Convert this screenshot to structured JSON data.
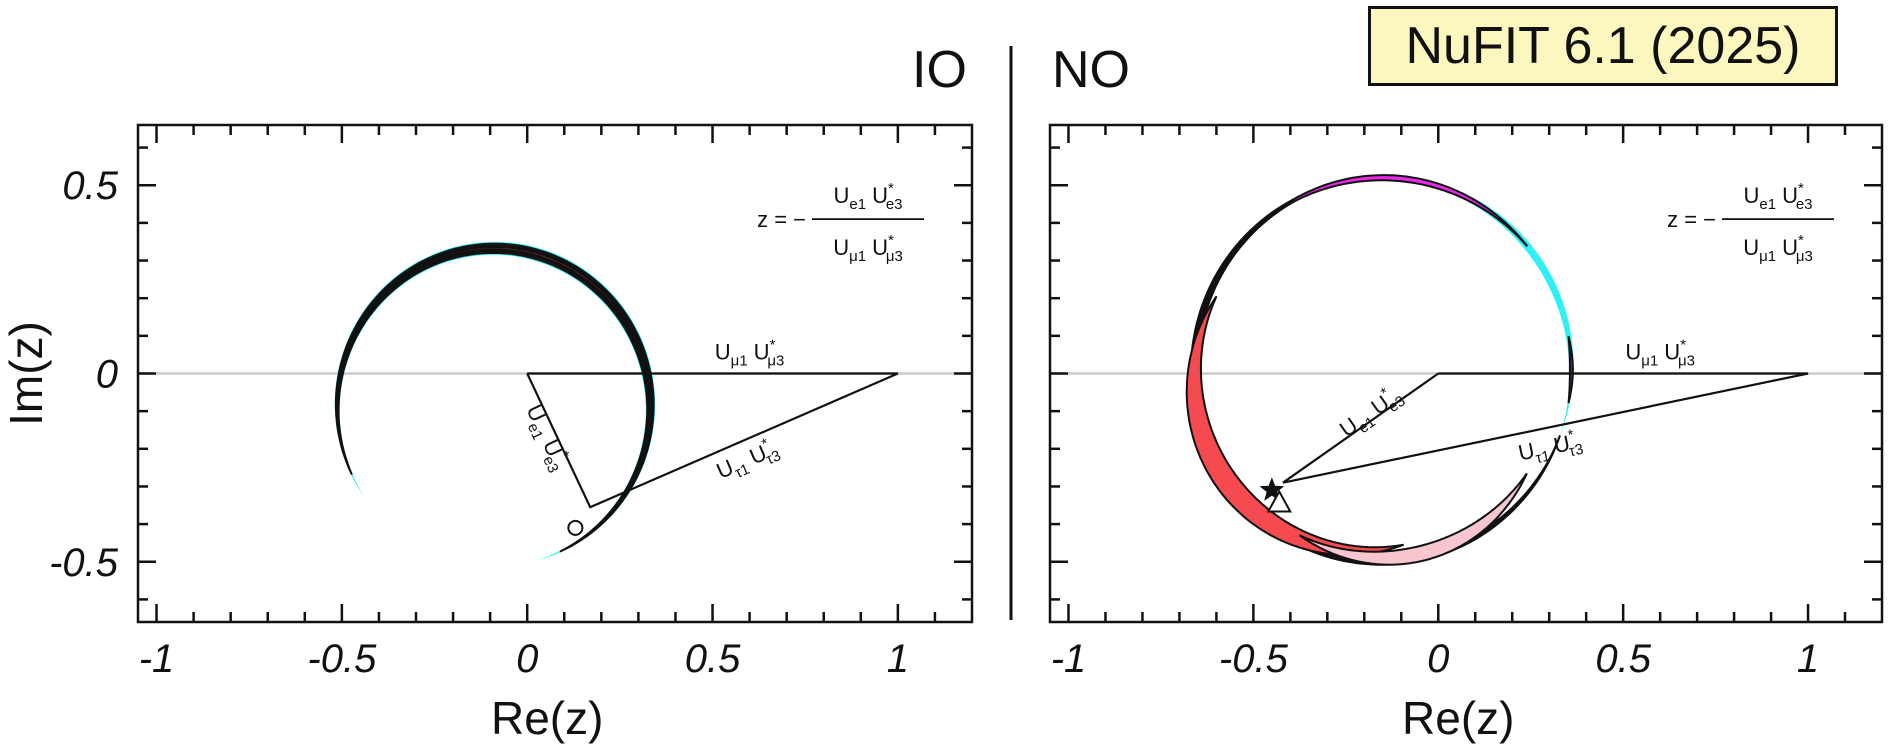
{
  "badge": {
    "text": "NuFIT 6.1 (2025)"
  },
  "colors": {
    "cyan": "#2ff0f7",
    "magenta": "#ec26e8",
    "blue": "#3332e6",
    "pink": "#f7c6cf",
    "red": "#f44a50",
    "black": "#111111",
    "zero_line": "#cccccc",
    "badge_bg": "#fbf7bf"
  },
  "xaxis_label": "Re(z)",
  "yaxis_label": "Im(z)",
  "chart_data": [
    {
      "type": "scatter",
      "panel": "IO",
      "title": "IO",
      "xlabel": "Re(z)",
      "ylabel": "Im(z)",
      "xlim": [
        -1.05,
        1.2
      ],
      "ylim": [
        -0.66,
        0.66
      ],
      "xticks": [
        -1,
        -0.5,
        0,
        0.5,
        1
      ],
      "xticklabels": [
        "-1",
        "-0.5",
        "0",
        "0.5",
        "1"
      ],
      "yticks": [
        -0.5,
        0,
        0.5
      ],
      "yticklabels": [
        "-0.5",
        "0",
        "0.5"
      ],
      "grid": false,
      "formula": {
        "lhs": "z = −",
        "numerator": [
          "U",
          "e1",
          "U",
          "e3"
        ],
        "denominator": [
          "U",
          "μ1",
          "U",
          "μ3"
        ]
      },
      "triangle_vertex": [
        0.17,
        -0.355
      ],
      "triangle_labels": {
        "mu": {
          "base": "U",
          "sub1": "μ1",
          "base2": "U",
          "sub2": "μ3"
        },
        "e": {
          "base": "U",
          "sub1": "e1",
          "base2": "U",
          "sub2": "e3"
        },
        "tau": {
          "base": "U",
          "sub1": "τ1",
          "base2": "U",
          "sub2": "τ3"
        }
      },
      "best_fit": {
        "marker": "circle",
        "x": 0.13,
        "y": -0.41
      },
      "regions": [
        {
          "level": "cyan",
          "center": [
            -0.09,
            -0.09
          ],
          "r_in": 0.405,
          "r_out": 0.44,
          "theta": [
            -75,
            215
          ],
          "clip_y": -0.05
        },
        {
          "level": "magenta",
          "center": [
            -0.09,
            -0.09
          ],
          "r_in": 0.41,
          "r_out": 0.435,
          "theta": [
            -65,
            205
          ],
          "clip_y": -0.12
        },
        {
          "level": "blue",
          "center": [
            -0.09,
            -0.09
          ],
          "r_in": 0.415,
          "r_out": 0.43,
          "theta": [
            -58,
            195
          ]
        },
        {
          "level": "pink",
          "center": [
            -0.09,
            -0.09
          ],
          "r_in": 0.418,
          "r_out": 0.428,
          "theta": [
            -50,
            192
          ]
        },
        {
          "level": "red",
          "center": [
            -0.09,
            -0.09
          ],
          "r_in": 0.42,
          "r_out": 0.426,
          "theta": [
            -43,
            185
          ]
        }
      ]
    },
    {
      "type": "scatter",
      "panel": "NO",
      "title": "NO",
      "xlabel": "Re(z)",
      "ylabel": "Im(z)",
      "xlim": [
        -1.05,
        1.2
      ],
      "ylim": [
        -0.66,
        0.66
      ],
      "xticks": [
        -1,
        -0.5,
        0,
        0.5,
        1
      ],
      "xticklabels": [
        "-1",
        "-0.5",
        "0",
        "0.5",
        "1"
      ],
      "yticks": [
        -0.5,
        0,
        0.5
      ],
      "yticklabels": [
        "-0.5",
        "0",
        "0.5"
      ],
      "grid": false,
      "formula": {
        "lhs": "z = −",
        "numerator": [
          "U",
          "e1",
          "U",
          "e3"
        ],
        "denominator": [
          "U",
          "μ1",
          "U",
          "μ3"
        ]
      },
      "triangle_vertex": [
        -0.42,
        -0.29
      ],
      "triangle_labels": {
        "mu": {
          "base": "U",
          "sub1": "μ1",
          "base2": "U",
          "sub2": "μ3"
        },
        "e": {
          "base": "U",
          "sub1": "e1",
          "base2": "U",
          "sub2": "e3"
        },
        "tau": {
          "base": "U",
          "sub1": "τ1",
          "base2": "U",
          "sub2": "τ3"
        }
      },
      "best_fit": {
        "marker": "star",
        "x": -0.45,
        "y": -0.31
      },
      "second_marker": {
        "marker": "triangle",
        "x": -0.43,
        "y": -0.34
      },
      "regions": [
        {
          "level": "cyan",
          "center": [
            -0.15,
            0.01
          ],
          "r_in": 0.5,
          "r_out": 0.52,
          "theta": [
            -20,
            95
          ]
        },
        {
          "level": "black",
          "center": [
            -0.15,
            0.01
          ],
          "r_in": 0.5,
          "r_out": 0.52,
          "theta": [
            95,
            340
          ]
        },
        {
          "level": "magenta",
          "center": [
            -0.15,
            0.01
          ],
          "r_in": 0.503,
          "r_out": 0.517,
          "theta": [
            40,
            130
          ]
        },
        {
          "level": "blue",
          "center": [
            -0.15,
            0.01
          ],
          "r_in": 0.506,
          "r_out": 0.514,
          "theta": [
            -10,
            10
          ]
        },
        {
          "level": "red",
          "center": [
            -0.21,
            -0.02
          ],
          "r_in": 0.42,
          "r_out": 0.48,
          "theta": [
            150,
            285
          ]
        },
        {
          "level": "pink",
          "center": [
            -0.15,
            -0.04
          ],
          "r_in": 0.43,
          "r_out": 0.47,
          "theta": [
            240,
            330
          ]
        }
      ]
    }
  ]
}
